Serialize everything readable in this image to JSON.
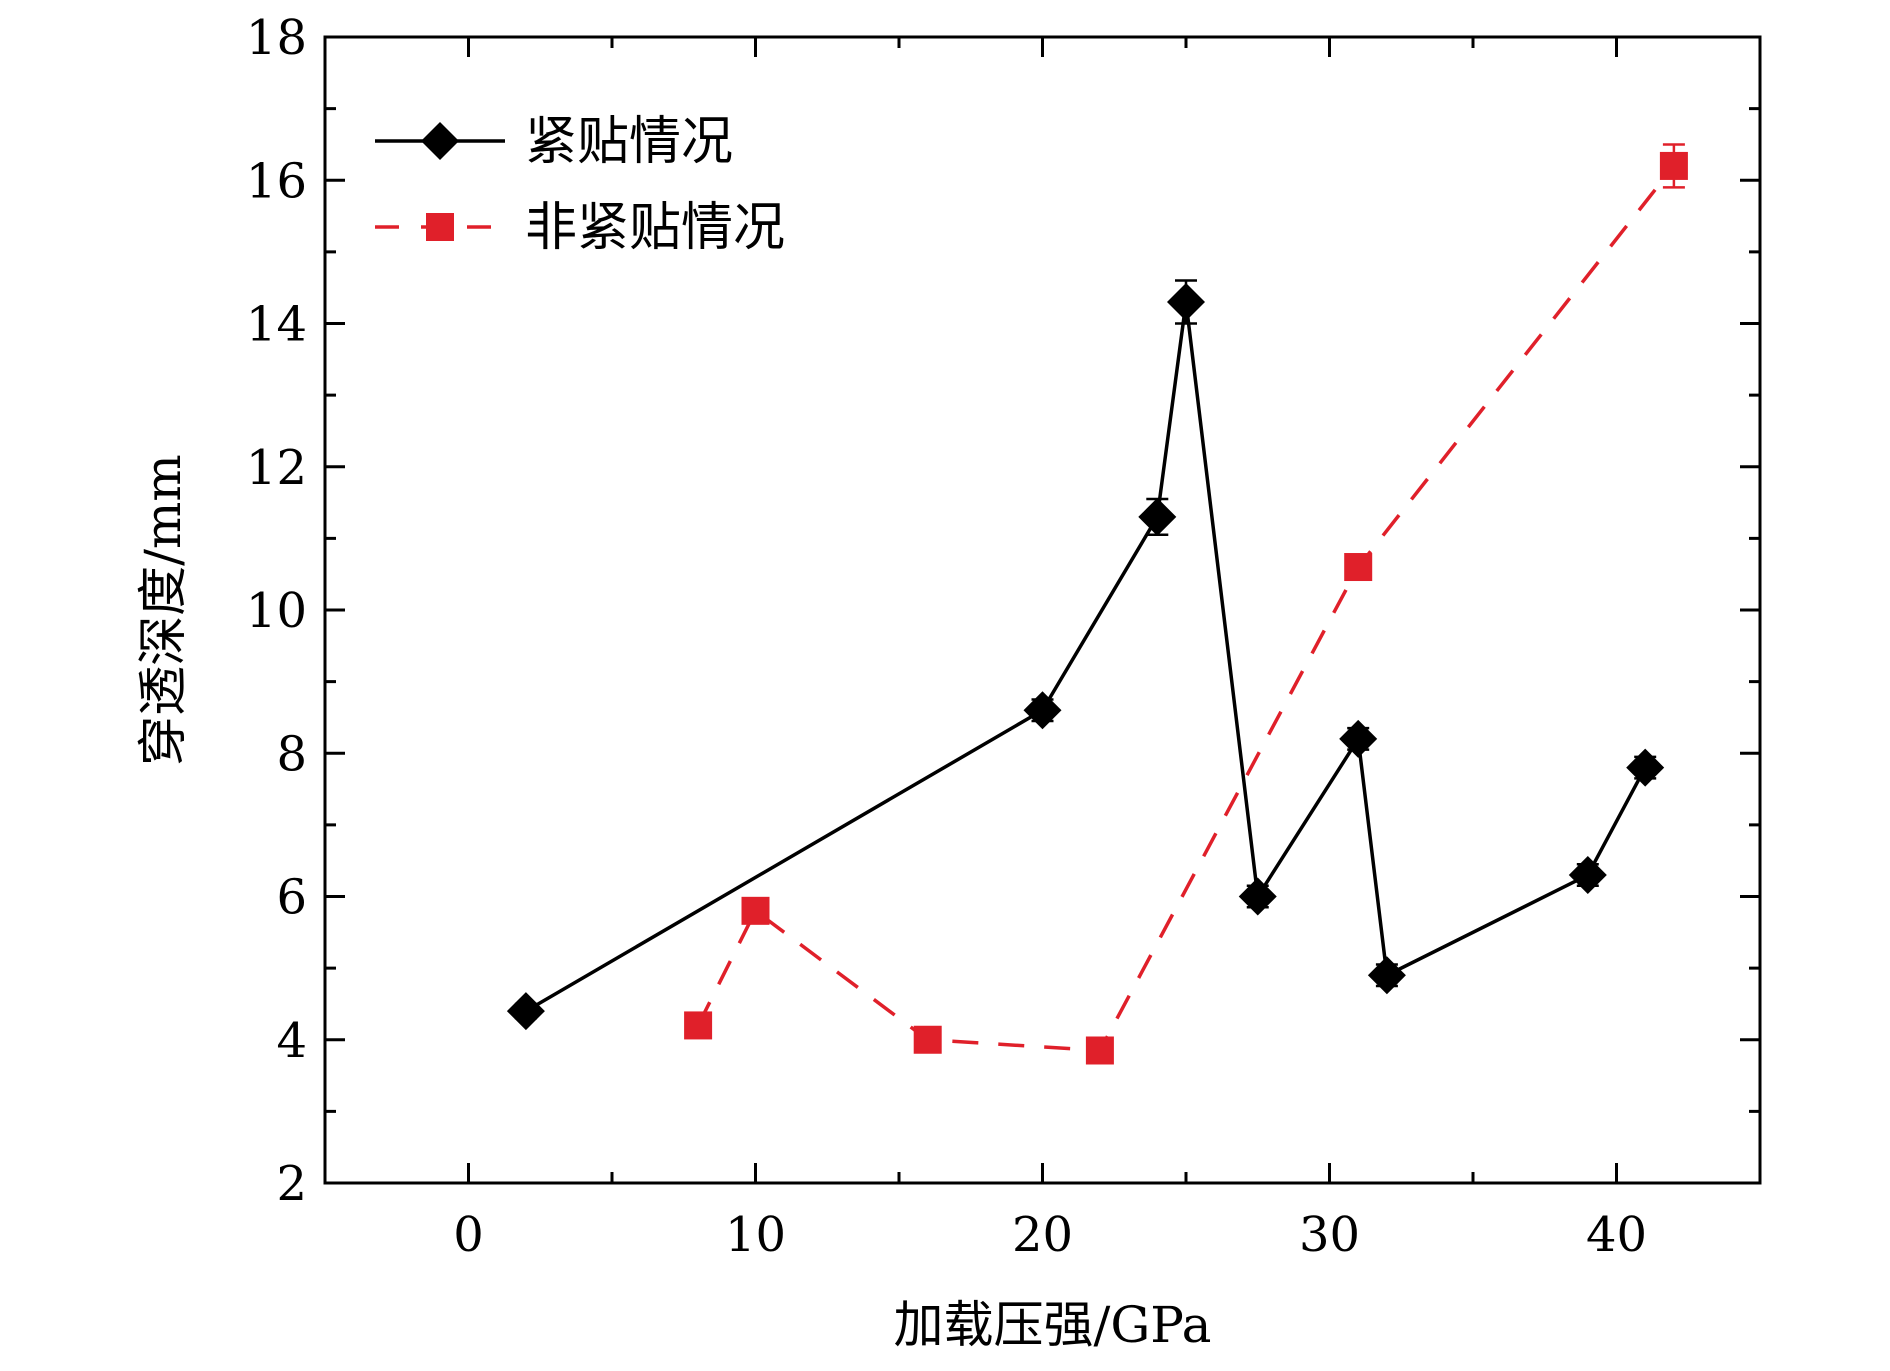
{
  "chart_data": {
    "type": "line",
    "title": "",
    "xlabel": "加载压强/GPa",
    "ylabel": "穿透深度/mm",
    "xlim": [
      -5,
      45
    ],
    "ylim": [
      2,
      18
    ],
    "x_major_ticks": [
      0,
      10,
      20,
      30,
      40
    ],
    "x_minor_ticks": [
      5,
      15,
      25,
      35
    ],
    "y_major_ticks": [
      2,
      4,
      6,
      8,
      10,
      12,
      14,
      16,
      18
    ],
    "y_minor_ticks": [
      3,
      5,
      7,
      9,
      11,
      13,
      15,
      17
    ],
    "legend_position": "top-left",
    "series": [
      {
        "name": "紧贴情况",
        "color": "#000000",
        "line_style": "solid",
        "marker": "diamond",
        "x": [
          2,
          20,
          24,
          25,
          27.5,
          31,
          32,
          39,
          41
        ],
        "y": [
          4.4,
          8.6,
          11.3,
          14.3,
          6.0,
          8.2,
          4.9,
          6.3,
          7.8
        ],
        "error": [
          0.1,
          0.15,
          0.25,
          0.3,
          0.15,
          0.15,
          0.15,
          0.15,
          0.15
        ]
      },
      {
        "name": "非紧贴情况",
        "color": "#e0202a",
        "line_style": "dashed",
        "marker": "square",
        "x": [
          8,
          10,
          16,
          22,
          31,
          42
        ],
        "y": [
          4.2,
          5.8,
          4.0,
          3.85,
          10.6,
          16.2
        ],
        "error": [
          0.1,
          0.1,
          0.1,
          0.1,
          0.15,
          0.3
        ]
      }
    ]
  }
}
